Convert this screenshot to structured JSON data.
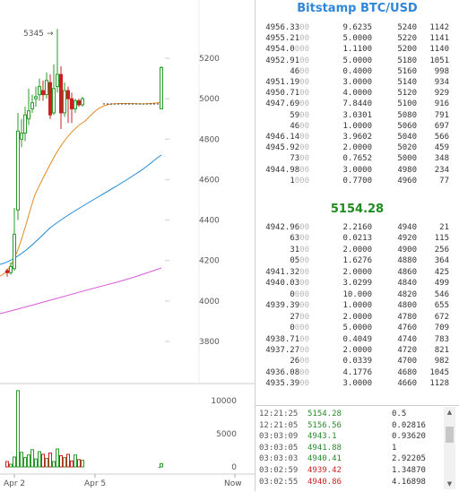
{
  "chart": {
    "annotation": "5345",
    "annotation_arrow": "→",
    "price_ticks": [
      "5200",
      "5000",
      "4800",
      "4600",
      "4400",
      "4200",
      "4000",
      "3800"
    ],
    "volume_ticks": [
      "10000",
      "5000",
      "0"
    ],
    "date_labels": [
      "Apr 2",
      "Apr 5",
      "Now"
    ],
    "colors": {
      "up": "#2a9a2a",
      "down": "#cc2020",
      "ma_short": "#e08a1e",
      "ma_mid": "#1e8ad6",
      "ma_long": "#d85ad8"
    }
  },
  "chart_data": {
    "type": "candlestick",
    "title": "",
    "ylim": [
      3720,
      5400
    ],
    "y_ticks": [
      3800,
      4000,
      4200,
      4400,
      4600,
      4800,
      5000,
      5200
    ],
    "x_labels": [
      "Apr 2",
      "Apr 5",
      "Now"
    ],
    "volume_ylim": [
      0,
      12000
    ],
    "volume_ticks": [
      0,
      5000,
      10000
    ]
  },
  "orderbook": {
    "title": "Bitstamp BTC/USD",
    "asks": [
      {
        "price": "4956.33",
        "dim": "00",
        "amount": "9.6235",
        "cum_price": "5240",
        "cum_amt": "1142"
      },
      {
        "price": "4955.21",
        "dim": "00",
        "amount": "5.0000",
        "cum_price": "5220",
        "cum_amt": "1141"
      },
      {
        "price": "4954.0",
        "dim": "000",
        "amount": "1.1100",
        "cum_price": "5200",
        "cum_amt": "1140"
      },
      {
        "price": "4952.91",
        "dim": "00",
        "amount": "5.0000",
        "cum_price": "5180",
        "cum_amt": "1051"
      },
      {
        "price": "46",
        "dim": "00",
        "amount": "0.4000",
        "cum_price": "5160",
        "cum_amt": "998"
      },
      {
        "price": "4951.19",
        "dim": "00",
        "amount": "3.0000",
        "cum_price": "5140",
        "cum_amt": "934"
      },
      {
        "price": "4950.71",
        "dim": "00",
        "amount": "4.0000",
        "cum_price": "5120",
        "cum_amt": "929"
      },
      {
        "price": "4947.69",
        "dim": "00",
        "amount": "7.8440",
        "cum_price": "5100",
        "cum_amt": "916"
      },
      {
        "price": "59",
        "dim": "00",
        "amount": "3.0301",
        "cum_price": "5080",
        "cum_amt": "791"
      },
      {
        "price": "46",
        "dim": "00",
        "amount": "1.0000",
        "cum_price": "5060",
        "cum_amt": "697"
      },
      {
        "price": "4946.14",
        "dim": "00",
        "amount": "3.9602",
        "cum_price": "5040",
        "cum_amt": "566"
      },
      {
        "price": "4945.92",
        "dim": "00",
        "amount": "2.0000",
        "cum_price": "5020",
        "cum_amt": "459"
      },
      {
        "price": "73",
        "dim": "00",
        "amount": "0.7652",
        "cum_price": "5000",
        "cum_amt": "348"
      },
      {
        "price": "4944.98",
        "dim": "00",
        "amount": "3.0000",
        "cum_price": "4980",
        "cum_amt": "234"
      },
      {
        "price": "1",
        "dim": "000",
        "amount": "0.7700",
        "cum_price": "4960",
        "cum_amt": "77"
      }
    ],
    "last_price": "5154.28",
    "bids": [
      {
        "price": "4942.96",
        "dim": "00",
        "amount": "2.2160",
        "cum_price": "4940",
        "cum_amt": "21"
      },
      {
        "price": "63",
        "dim": "00",
        "amount": "0.0213",
        "cum_price": "4920",
        "cum_amt": "115"
      },
      {
        "price": "31",
        "dim": "00",
        "amount": "2.0000",
        "cum_price": "4900",
        "cum_amt": "256"
      },
      {
        "price": "05",
        "dim": "00",
        "amount": "1.6276",
        "cum_price": "4880",
        "cum_amt": "364"
      },
      {
        "price": "4941.32",
        "dim": "00",
        "amount": "2.0000",
        "cum_price": "4860",
        "cum_amt": "425"
      },
      {
        "price": "4940.03",
        "dim": "00",
        "amount": "3.0299",
        "cum_price": "4840",
        "cum_amt": "499"
      },
      {
        "price": "0",
        "dim": "000",
        "amount": "10.000",
        "cum_price": "4820",
        "cum_amt": "546"
      },
      {
        "price": "4939.39",
        "dim": "00",
        "amount": "1.0000",
        "cum_price": "4800",
        "cum_amt": "655"
      },
      {
        "price": "27",
        "dim": "00",
        "amount": "2.0000",
        "cum_price": "4780",
        "cum_amt": "672"
      },
      {
        "price": "0",
        "dim": "000",
        "amount": "5.0000",
        "cum_price": "4760",
        "cum_amt": "709"
      },
      {
        "price": "4938.71",
        "dim": "00",
        "amount": "0.4049",
        "cum_price": "4740",
        "cum_amt": "783"
      },
      {
        "price": "4937.27",
        "dim": "00",
        "amount": "2.0000",
        "cum_price": "4720",
        "cum_amt": "821"
      },
      {
        "price": "26",
        "dim": "00",
        "amount": "0.0339",
        "cum_price": "4700",
        "cum_amt": "982"
      },
      {
        "price": "4936.08",
        "dim": "00",
        "amount": "4.1776",
        "cum_price": "4680",
        "cum_amt": "1045"
      },
      {
        "price": "4935.39",
        "dim": "00",
        "amount": "3.0000",
        "cum_price": "4660",
        "cum_amt": "1128"
      }
    ]
  },
  "trades": [
    {
      "time": "12:21:25",
      "price": "5154.28",
      "dir": "up",
      "amount": "0.5"
    },
    {
      "time": "12:21:05",
      "price": "5156.56",
      "dir": "up",
      "amount": "0.02816"
    },
    {
      "time": "03:03:09",
      "price": "4943.1",
      "dir": "up",
      "amount": "0.93620"
    },
    {
      "time": "03:03:05",
      "price": "4941.88",
      "dir": "up",
      "amount": "1"
    },
    {
      "time": "03:03:03",
      "price": "4940.41",
      "dir": "up",
      "amount": "2.92205"
    },
    {
      "time": "03:02:59",
      "price": "4939.42",
      "dir": "down",
      "amount": "1.34870"
    },
    {
      "time": "03:02:55",
      "price": "4940.86",
      "dir": "down",
      "amount": "4.16898"
    }
  ],
  "scrollbar": {
    "up_arrow": "▲",
    "down_arrow": "▼"
  }
}
